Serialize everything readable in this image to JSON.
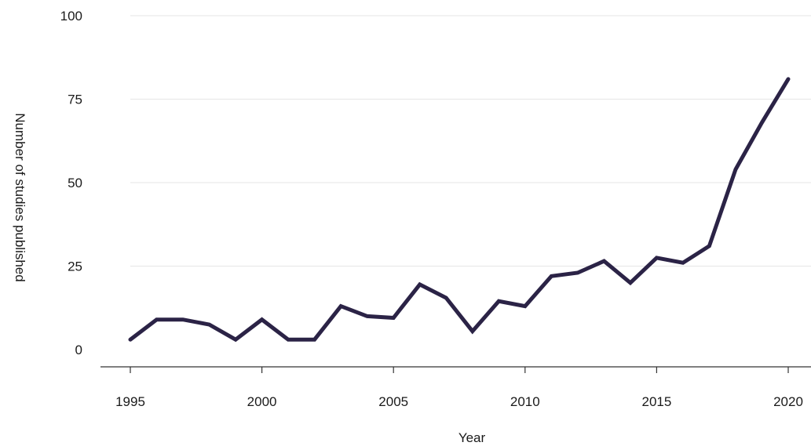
{
  "chart_data": {
    "type": "line",
    "xlabel": "Year",
    "ylabel": "Number of studies published",
    "xlim": [
      1995,
      2020
    ],
    "ylim": [
      0,
      100
    ],
    "x_ticks": [
      1995,
      2000,
      2005,
      2010,
      2015,
      2020
    ],
    "y_ticks": [
      0,
      25,
      50,
      75,
      100
    ],
    "grid": "horizontal",
    "series": [
      {
        "color": "#2b2346",
        "x": [
          1995,
          1996,
          1997,
          1998,
          1999,
          2000,
          2001,
          2002,
          2003,
          2004,
          2005,
          2006,
          2007,
          2008,
          2009,
          2010,
          2011,
          2012,
          2013,
          2014,
          2015,
          2016,
          2017,
          2018,
          2019,
          2020
        ],
        "y": [
          3,
          9,
          9,
          7.5,
          3,
          9,
          3,
          3,
          13,
          10,
          9.5,
          19.5,
          15.5,
          5.5,
          14.5,
          13,
          22,
          23,
          26.5,
          20,
          27.5,
          26,
          31,
          54,
          68,
          81
        ]
      }
    ]
  }
}
